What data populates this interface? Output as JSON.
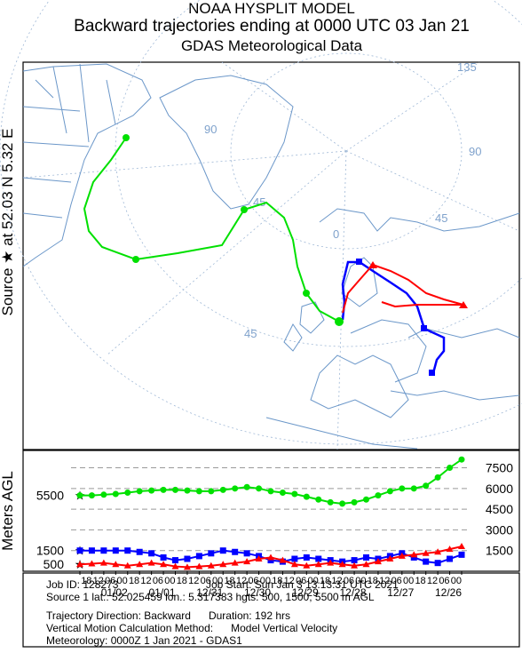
{
  "header": {
    "line1": "NOAA HYSPLIT MODEL",
    "line2": "Backward trajectories ending at 0000 UTC 03 Jan 21",
    "line3": "GDAS Meteorological Data"
  },
  "side_label": "Source ★ at 52.03 N 5.32 E",
  "map": {
    "grid_labels": [
      "135",
      "90",
      "45",
      "0",
      "45",
      "90",
      "45"
    ]
  },
  "chart_data": {
    "type": "line",
    "y_axis_label": "Meters AGL",
    "categories": [
      null,
      "18",
      "12",
      "06",
      "00",
      "18",
      "12",
      "06",
      "00",
      "18",
      "12",
      "06",
      "00",
      "18",
      "12",
      "06",
      "00",
      "18",
      "12",
      "06",
      "00",
      "18",
      "12",
      "06",
      "00",
      "18",
      "12",
      "06",
      "00",
      "18",
      "12",
      "06",
      "00"
    ],
    "dates": [
      null,
      null,
      null,
      null,
      "01/02",
      null,
      null,
      null,
      "01/01",
      null,
      null,
      null,
      "12/31",
      null,
      null,
      null,
      "12/30",
      null,
      null,
      null,
      "12/29",
      null,
      null,
      null,
      "12/28",
      null,
      null,
      null,
      "12/27",
      null,
      null,
      null,
      "12/26"
    ],
    "ylim": [
      0,
      8500
    ],
    "yticks": [
      1500,
      3000,
      4500,
      6000,
      7500
    ],
    "grid": true,
    "start_heights": [
      5500,
      1500,
      500
    ],
    "series": [
      {
        "color": "#00e000",
        "marker": "circle",
        "values": [
          5500,
          5500,
          5550,
          5600,
          5700,
          5800,
          5850,
          5900,
          5900,
          5850,
          5800,
          5800,
          5900,
          6000,
          6100,
          6000,
          5800,
          5700,
          5600,
          5400,
          5200,
          5000,
          4900,
          5000,
          5200,
          5500,
          5800,
          6000,
          6000,
          6200,
          6800,
          7500,
          8100
        ]
      },
      {
        "color": "#0000ff",
        "marker": "square",
        "values": [
          1500,
          1500,
          1500,
          1500,
          1500,
          1400,
          1300,
          1000,
          800,
          900,
          1100,
          1300,
          1500,
          1400,
          1300,
          1100,
          800,
          700,
          900,
          1000,
          900,
          800,
          700,
          800,
          1000,
          900,
          1100,
          1300,
          1000,
          700,
          600,
          900,
          1200
        ]
      },
      {
        "color": "#ff0000",
        "marker": "triangle",
        "values": [
          500,
          550,
          600,
          500,
          400,
          500,
          600,
          500,
          350,
          300,
          350,
          400,
          500,
          600,
          700,
          900,
          1000,
          800,
          500,
          400,
          500,
          600,
          500,
          400,
          500,
          700,
          900,
          1100,
          1200,
          1300,
          1400,
          1600,
          1800
        ]
      }
    ]
  },
  "footer": {
    "job_id": "Job ID: 128273",
    "job_start": "Job Start: Sun Jan  3 13:13:31 UTC 2021",
    "source": "Source 1 lat.: 52.025459  lon.: 5.317383  hgts: 500, 1500, 5500 m AGL",
    "direction": "Trajectory Direction: Backward      Duration: 192 hrs",
    "vertical": "Vertical Motion Calculation Method:      Model Vertical Velocity",
    "meteorology": "Meteorology: 0000Z  1 Jan 2021 - GDAS1"
  }
}
